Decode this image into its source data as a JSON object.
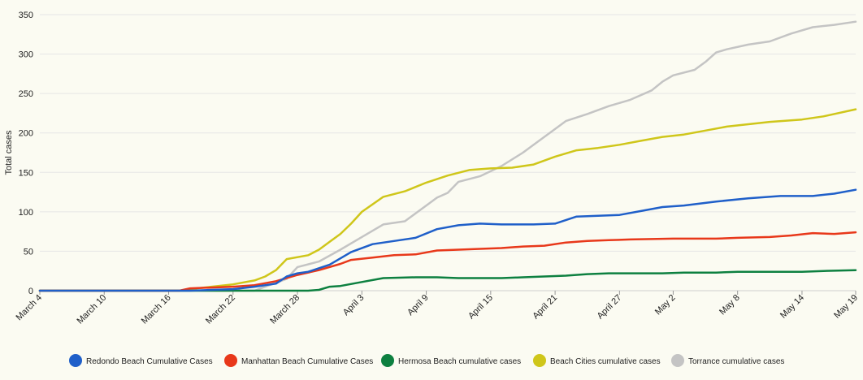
{
  "chart_data": {
    "type": "line",
    "ylabel": "Total cases",
    "ylim": [
      0,
      350
    ],
    "y_ticks": [
      "0",
      "50",
      "100",
      "150",
      "200",
      "250",
      "300",
      "350"
    ],
    "x_start": "2020-03-04",
    "x_end": "2020-05-19",
    "x_tick_labels": [
      "March 4",
      "March 10",
      "March 16",
      "March 22",
      "March 28",
      "April 3",
      "April 9",
      "April 15",
      "April 21",
      "April 27",
      "May 2",
      "May 8",
      "May 14",
      "May 19"
    ],
    "x_tick_dates": [
      "2020-03-04",
      "2020-03-10",
      "2020-03-16",
      "2020-03-22",
      "2020-03-28",
      "2020-04-03",
      "2020-04-09",
      "2020-04-15",
      "2020-04-21",
      "2020-04-27",
      "2020-05-02",
      "2020-05-08",
      "2020-05-14",
      "2020-05-19"
    ],
    "grid": "horizontal",
    "legend_position": "bottom",
    "series": [
      {
        "name": "Redondo Beach Cumulative Cases",
        "color": "#1f5fc9",
        "points": [
          [
            "2020-03-04",
            0
          ],
          [
            "2020-03-18",
            0
          ],
          [
            "2020-03-20",
            1
          ],
          [
            "2020-03-22",
            2
          ],
          [
            "2020-03-24",
            5
          ],
          [
            "2020-03-26",
            9
          ],
          [
            "2020-03-27",
            18
          ],
          [
            "2020-03-28",
            22
          ],
          [
            "2020-03-29",
            24
          ],
          [
            "2020-03-31",
            33
          ],
          [
            "2020-04-02",
            49
          ],
          [
            "2020-04-04",
            59
          ],
          [
            "2020-04-06",
            63
          ],
          [
            "2020-04-08",
            67
          ],
          [
            "2020-04-10",
            78
          ],
          [
            "2020-04-12",
            83
          ],
          [
            "2020-04-14",
            85
          ],
          [
            "2020-04-16",
            84
          ],
          [
            "2020-04-19",
            84
          ],
          [
            "2020-04-21",
            85
          ],
          [
            "2020-04-23",
            94
          ],
          [
            "2020-04-25",
            95
          ],
          [
            "2020-04-27",
            96
          ],
          [
            "2020-04-29",
            101
          ],
          [
            "2020-05-01",
            106
          ],
          [
            "2020-05-03",
            108
          ],
          [
            "2020-05-06",
            113
          ],
          [
            "2020-05-09",
            117
          ],
          [
            "2020-05-12",
            120
          ],
          [
            "2020-05-15",
            120
          ],
          [
            "2020-05-17",
            123
          ],
          [
            "2020-05-19",
            128
          ]
        ]
      },
      {
        "name": "Manhattan Beach Cumulative Cases",
        "color": "#e8381a",
        "points": [
          [
            "2020-03-04",
            0
          ],
          [
            "2020-03-17",
            0
          ],
          [
            "2020-03-18",
            3
          ],
          [
            "2020-03-20",
            4
          ],
          [
            "2020-03-22",
            5
          ],
          [
            "2020-03-24",
            7
          ],
          [
            "2020-03-26",
            12
          ],
          [
            "2020-03-28",
            20
          ],
          [
            "2020-03-30",
            26
          ],
          [
            "2020-04-01",
            34
          ],
          [
            "2020-04-02",
            39
          ],
          [
            "2020-04-04",
            42
          ],
          [
            "2020-04-06",
            45
          ],
          [
            "2020-04-08",
            46
          ],
          [
            "2020-04-10",
            51
          ],
          [
            "2020-04-12",
            52
          ],
          [
            "2020-04-14",
            53
          ],
          [
            "2020-04-16",
            54
          ],
          [
            "2020-04-18",
            56
          ],
          [
            "2020-04-20",
            57
          ],
          [
            "2020-04-22",
            61
          ],
          [
            "2020-04-24",
            63
          ],
          [
            "2020-04-26",
            64
          ],
          [
            "2020-04-28",
            65
          ],
          [
            "2020-05-02",
            66
          ],
          [
            "2020-05-06",
            66
          ],
          [
            "2020-05-08",
            67
          ],
          [
            "2020-05-11",
            68
          ],
          [
            "2020-05-13",
            70
          ],
          [
            "2020-05-15",
            73
          ],
          [
            "2020-05-17",
            72
          ],
          [
            "2020-05-19",
            74
          ]
        ]
      },
      {
        "name": "Hermosa Beach cumulative cases",
        "color": "#0d8040",
        "points": [
          [
            "2020-03-04",
            0
          ],
          [
            "2020-03-29",
            0
          ],
          [
            "2020-03-30",
            1
          ],
          [
            "2020-03-31",
            5
          ],
          [
            "2020-04-01",
            6
          ],
          [
            "2020-04-03",
            11
          ],
          [
            "2020-04-05",
            16
          ],
          [
            "2020-04-08",
            17
          ],
          [
            "2020-04-10",
            17
          ],
          [
            "2020-04-12",
            16
          ],
          [
            "2020-04-16",
            16
          ],
          [
            "2020-04-18",
            17
          ],
          [
            "2020-04-20",
            18
          ],
          [
            "2020-04-22",
            19
          ],
          [
            "2020-04-24",
            21
          ],
          [
            "2020-04-26",
            22
          ],
          [
            "2020-05-01",
            22
          ],
          [
            "2020-05-03",
            23
          ],
          [
            "2020-05-06",
            23
          ],
          [
            "2020-05-08",
            24
          ],
          [
            "2020-05-14",
            24
          ],
          [
            "2020-05-16",
            25
          ],
          [
            "2020-05-19",
            26
          ]
        ]
      },
      {
        "name": "Beach Cities cumulative cases",
        "color": "#cfc61a",
        "points": [
          [
            "2020-03-04",
            0
          ],
          [
            "2020-03-17",
            0
          ],
          [
            "2020-03-18",
            2
          ],
          [
            "2020-03-20",
            5
          ],
          [
            "2020-03-22",
            8
          ],
          [
            "2020-03-24",
            13
          ],
          [
            "2020-03-25",
            18
          ],
          [
            "2020-03-26",
            26
          ],
          [
            "2020-03-27",
            40
          ],
          [
            "2020-03-29",
            45
          ],
          [
            "2020-03-30",
            52
          ],
          [
            "2020-03-31",
            62
          ],
          [
            "2020-04-01",
            72
          ],
          [
            "2020-04-02",
            85
          ],
          [
            "2020-04-03",
            100
          ],
          [
            "2020-04-05",
            119
          ],
          [
            "2020-04-07",
            126
          ],
          [
            "2020-04-09",
            137
          ],
          [
            "2020-04-11",
            146
          ],
          [
            "2020-04-13",
            153
          ],
          [
            "2020-04-15",
            155
          ],
          [
            "2020-04-17",
            156
          ],
          [
            "2020-04-19",
            160
          ],
          [
            "2020-04-21",
            170
          ],
          [
            "2020-04-23",
            178
          ],
          [
            "2020-04-25",
            181
          ],
          [
            "2020-04-27",
            185
          ],
          [
            "2020-04-29",
            190
          ],
          [
            "2020-05-01",
            195
          ],
          [
            "2020-05-03",
            198
          ],
          [
            "2020-05-05",
            203
          ],
          [
            "2020-05-07",
            208
          ],
          [
            "2020-05-09",
            211
          ],
          [
            "2020-05-11",
            214
          ],
          [
            "2020-05-14",
            217
          ],
          [
            "2020-05-16",
            221
          ],
          [
            "2020-05-19",
            230
          ]
        ]
      },
      {
        "name": "Torrance cumulative cases",
        "color": "#c4c4c4",
        "points": [
          [
            "2020-03-04",
            0
          ],
          [
            "2020-03-24",
            0
          ],
          [
            "2020-03-25",
            5
          ],
          [
            "2020-03-27",
            15
          ],
          [
            "2020-03-28",
            30
          ],
          [
            "2020-03-30",
            37
          ],
          [
            "2020-04-01",
            52
          ],
          [
            "2020-04-03",
            68
          ],
          [
            "2020-04-05",
            84
          ],
          [
            "2020-04-07",
            88
          ],
          [
            "2020-04-09",
            108
          ],
          [
            "2020-04-10",
            118
          ],
          [
            "2020-04-11",
            124
          ],
          [
            "2020-04-12",
            138
          ],
          [
            "2020-04-14",
            145
          ],
          [
            "2020-04-16",
            158
          ],
          [
            "2020-04-18",
            175
          ],
          [
            "2020-04-19",
            185
          ],
          [
            "2020-04-21",
            205
          ],
          [
            "2020-04-22",
            215
          ],
          [
            "2020-04-24",
            224
          ],
          [
            "2020-04-26",
            234
          ],
          [
            "2020-04-28",
            242
          ],
          [
            "2020-04-30",
            254
          ],
          [
            "2020-05-01",
            265
          ],
          [
            "2020-05-02",
            273
          ],
          [
            "2020-05-04",
            280
          ],
          [
            "2020-05-05",
            290
          ],
          [
            "2020-05-06",
            302
          ],
          [
            "2020-05-07",
            306
          ],
          [
            "2020-05-09",
            312
          ],
          [
            "2020-05-11",
            316
          ],
          [
            "2020-05-13",
            326
          ],
          [
            "2020-05-15",
            334
          ],
          [
            "2020-05-17",
            337
          ],
          [
            "2020-05-19",
            341
          ]
        ]
      }
    ]
  }
}
